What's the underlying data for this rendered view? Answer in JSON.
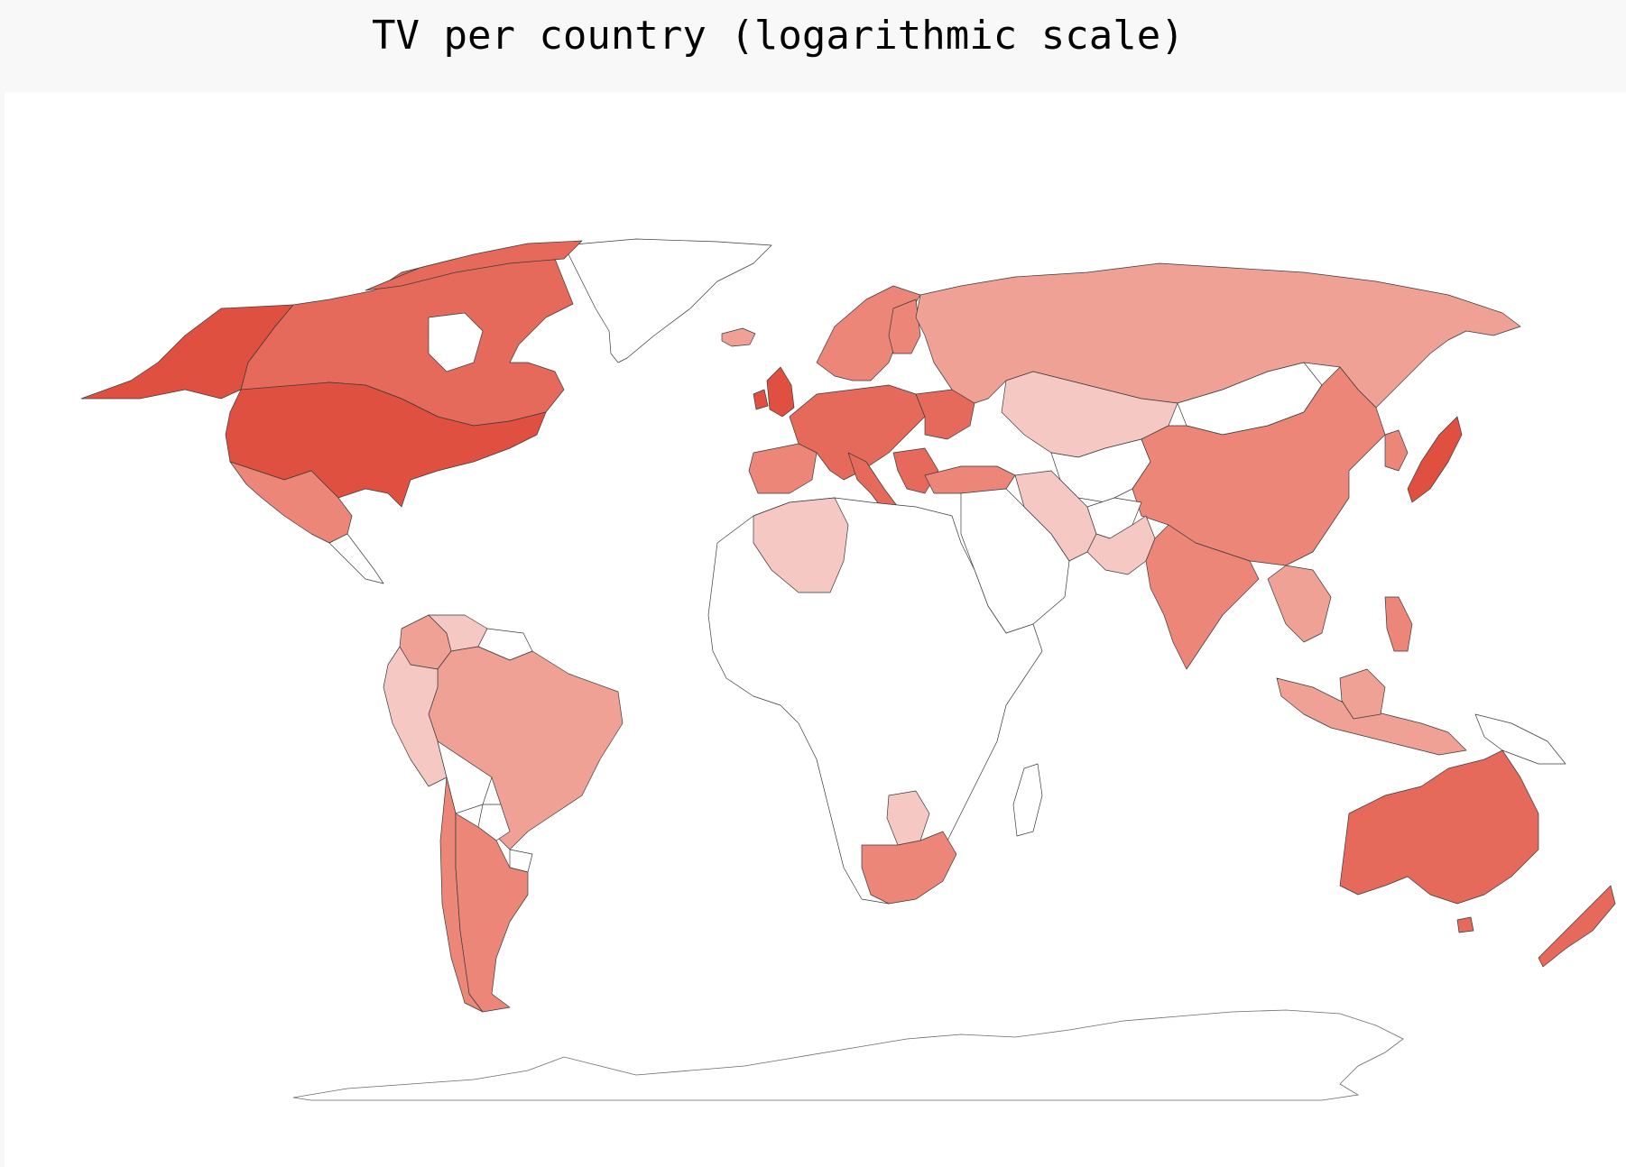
{
  "title": "TV per country (logarithmic scale)",
  "colors": {
    "background": "#f8f8f8",
    "map_background": "#ffffff",
    "border": "#3a3a3a",
    "no_data": "#ffffff",
    "level_1": "#f6c8c3",
    "level_2": "#f0a196",
    "level_3": "#eb8679",
    "level_4": "#e66a5c",
    "level_5": "#e05040"
  },
  "map_data": {
    "type": "choropleth",
    "scale": "logarithmic",
    "colormap": "reds",
    "countries": [
      {
        "id": "usa",
        "name": "United States",
        "level": 5
      },
      {
        "id": "alaska",
        "name": "Alaska",
        "level": 5
      },
      {
        "id": "canada",
        "name": "Canada",
        "level": 4
      },
      {
        "id": "mexico",
        "name": "Mexico",
        "level": 3
      },
      {
        "id": "south-america-north",
        "name": "Colombia",
        "level": 2
      },
      {
        "id": "venezuela",
        "name": "Venezuela",
        "level": 1
      },
      {
        "id": "brazil",
        "name": "Brazil",
        "level": 2
      },
      {
        "id": "peru",
        "name": "Peru",
        "level": 1
      },
      {
        "id": "argentina",
        "name": "Argentina",
        "level": 3
      },
      {
        "id": "chile",
        "name": "Chile",
        "level": 3
      },
      {
        "id": "western-europe",
        "name": "Western Europe",
        "level": 4
      },
      {
        "id": "uk",
        "name": "United Kingdom",
        "level": 5
      },
      {
        "id": "iberia",
        "name": "Spain",
        "level": 3
      },
      {
        "id": "scandinavia",
        "name": "Scandinavia",
        "level": 3
      },
      {
        "id": "russia",
        "name": "Russia",
        "level": 2
      },
      {
        "id": "kazakhstan",
        "name": "Kazakhstan",
        "level": 1
      },
      {
        "id": "turkey",
        "name": "Turkey",
        "level": 3
      },
      {
        "id": "iran",
        "name": "Iran",
        "level": 1
      },
      {
        "id": "pakistan",
        "name": "Pakistan",
        "level": 1
      },
      {
        "id": "india",
        "name": "India",
        "level": 3
      },
      {
        "id": "china",
        "name": "China",
        "level": 3
      },
      {
        "id": "japan",
        "name": "Japan",
        "level": 5
      },
      {
        "id": "korea",
        "name": "South Korea",
        "level": 3
      },
      {
        "id": "southeast-asia",
        "name": "Thailand",
        "level": 2
      },
      {
        "id": "indonesia",
        "name": "Indonesia",
        "level": 2
      },
      {
        "id": "philippines",
        "name": "Philippines",
        "level": 3
      },
      {
        "id": "australia",
        "name": "Australia",
        "level": 4
      },
      {
        "id": "new-zealand",
        "name": "New Zealand",
        "level": 4
      },
      {
        "id": "algeria",
        "name": "Algeria",
        "level": 1
      },
      {
        "id": "south-africa",
        "name": "South Africa",
        "level": 3
      },
      {
        "id": "botswana",
        "name": "Botswana",
        "level": 1
      },
      {
        "id": "iceland",
        "name": "Iceland",
        "level": 2
      },
      {
        "id": "greenland",
        "name": "Greenland",
        "level": 0
      },
      {
        "id": "africa",
        "name": "Africa",
        "level": 0
      },
      {
        "id": "mongolia",
        "name": "Mongolia",
        "level": 0
      },
      {
        "id": "middle-east",
        "name": "Arabian Peninsula",
        "level": 0
      },
      {
        "id": "central-asia",
        "name": "Central Asia",
        "level": 0
      },
      {
        "id": "madagascar",
        "name": "Madagascar",
        "level": 0
      },
      {
        "id": "papua",
        "name": "Papua New Guinea",
        "level": 0
      }
    ]
  }
}
